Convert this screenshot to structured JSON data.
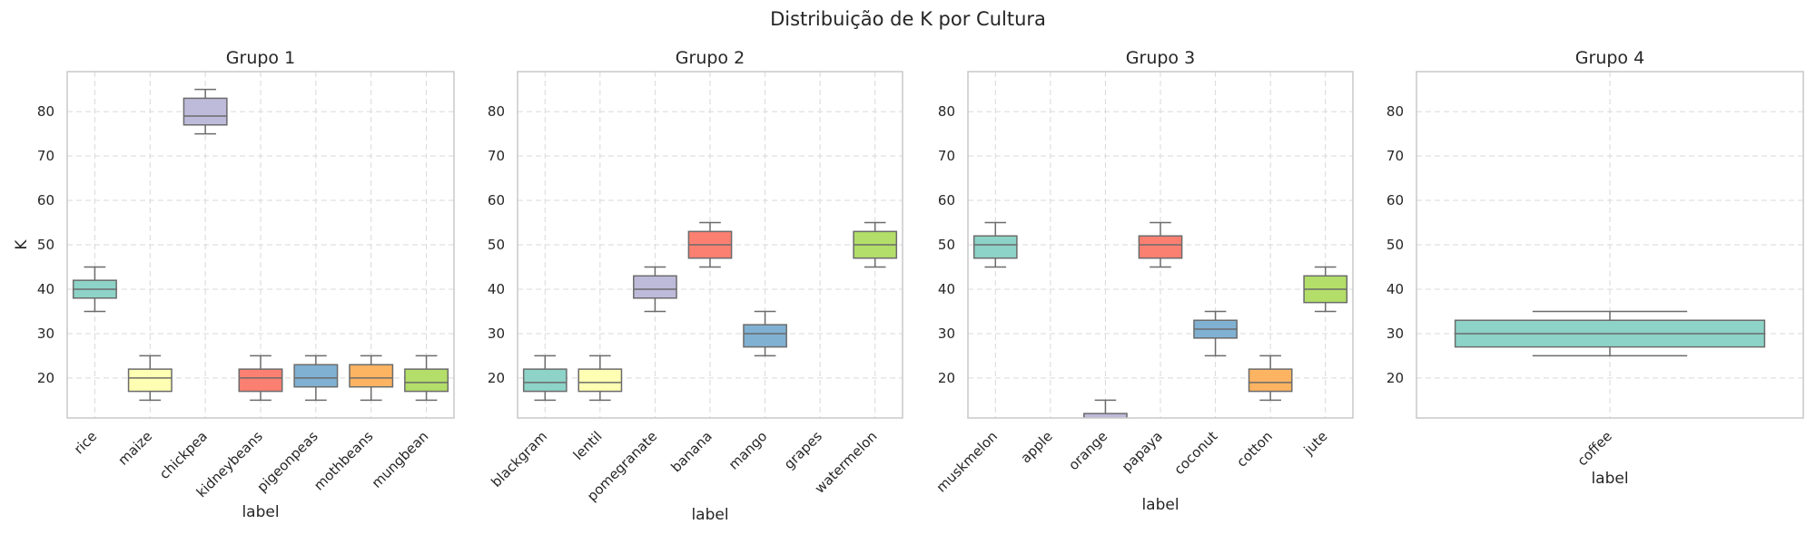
{
  "title": "Distribuição de K por Cultura",
  "chart_data": [
    {
      "type": "box",
      "title": "Grupo 1",
      "xlabel": "label",
      "ylabel": "K",
      "ylim": [
        11,
        89
      ],
      "yticks": [
        20,
        30,
        40,
        50,
        60,
        70,
        80
      ],
      "grid": true,
      "categories": [
        "rice",
        "maize",
        "chickpea",
        "kidneybeans",
        "pigeonpeas",
        "mothbeans",
        "mungbean"
      ],
      "boxes": [
        {
          "whislo": 35,
          "q1": 38,
          "med": 40,
          "q3": 42,
          "whishi": 45,
          "color": "#8dd3c7"
        },
        {
          "whislo": 15,
          "q1": 17,
          "med": 20,
          "q3": 22,
          "whishi": 25,
          "color": "#ffffb3"
        },
        {
          "whislo": 75,
          "q1": 77,
          "med": 79,
          "q3": 83,
          "whishi": 85,
          "color": "#bebada"
        },
        {
          "whislo": 15,
          "q1": 17,
          "med": 20,
          "q3": 22,
          "whishi": 25,
          "color": "#fb8072"
        },
        {
          "whislo": 15,
          "q1": 18,
          "med": 20,
          "q3": 23,
          "whishi": 25,
          "color": "#80b1d3"
        },
        {
          "whislo": 15,
          "q1": 18,
          "med": 20,
          "q3": 23,
          "whishi": 25,
          "color": "#fdb462"
        },
        {
          "whislo": 15,
          "q1": 17,
          "med": 19,
          "q3": 22,
          "whishi": 25,
          "color": "#b3de69"
        }
      ]
    },
    {
      "type": "box",
      "title": "Grupo 2",
      "xlabel": "label",
      "ylabel": "",
      "ylim": [
        11,
        89
      ],
      "yticks": [
        20,
        30,
        40,
        50,
        60,
        70,
        80
      ],
      "grid": true,
      "categories": [
        "blackgram",
        "lentil",
        "pomegranate",
        "banana",
        "mango",
        "grapes",
        "watermelon"
      ],
      "boxes": [
        {
          "whislo": 15,
          "q1": 17,
          "med": 19,
          "q3": 22,
          "whishi": 25,
          "color": "#8dd3c7"
        },
        {
          "whislo": 15,
          "q1": 17,
          "med": 19,
          "q3": 22,
          "whishi": 25,
          "color": "#ffffb3"
        },
        {
          "whislo": 35,
          "q1": 38,
          "med": 40,
          "q3": 43,
          "whishi": 45,
          "color": "#bebada"
        },
        {
          "whislo": 45,
          "q1": 47,
          "med": 50,
          "q3": 53,
          "whishi": 55,
          "color": "#fb8072"
        },
        {
          "whislo": 25,
          "q1": 27,
          "med": 30,
          "q3": 32,
          "whishi": 35,
          "color": "#80b1d3"
        },
        null,
        {
          "whislo": 45,
          "q1": 47,
          "med": 50,
          "q3": 53,
          "whishi": 55,
          "color": "#b3de69"
        }
      ]
    },
    {
      "type": "box",
      "title": "Grupo 3",
      "xlabel": "label",
      "ylabel": "",
      "ylim": [
        11,
        89
      ],
      "yticks": [
        20,
        30,
        40,
        50,
        60,
        70,
        80
      ],
      "grid": true,
      "categories": [
        "muskmelon",
        "apple",
        "orange",
        "papaya",
        "coconut",
        "cotton",
        "jute"
      ],
      "boxes": [
        {
          "whislo": 45,
          "q1": 47,
          "med": 50,
          "q3": 52,
          "whishi": 55,
          "color": "#8dd3c7"
        },
        null,
        {
          "whislo": 5,
          "q1": 7,
          "med": 10,
          "q3": 12,
          "whishi": 15,
          "color": "#bebada"
        },
        {
          "whislo": 45,
          "q1": 47,
          "med": 50,
          "q3": 52,
          "whishi": 55,
          "color": "#fb8072"
        },
        {
          "whislo": 25,
          "q1": 29,
          "med": 31,
          "q3": 33,
          "whishi": 35,
          "color": "#80b1d3"
        },
        {
          "whislo": 15,
          "q1": 17,
          "med": 19,
          "q3": 22,
          "whishi": 25,
          "color": "#fdb462"
        },
        {
          "whislo": 35,
          "q1": 37,
          "med": 40,
          "q3": 43,
          "whishi": 45,
          "color": "#b3de69"
        }
      ]
    },
    {
      "type": "box",
      "title": "Grupo 4",
      "xlabel": "label",
      "ylabel": "",
      "ylim": [
        11,
        89
      ],
      "yticks": [
        20,
        30,
        40,
        50,
        60,
        70,
        80
      ],
      "grid": true,
      "categories": [
        "coffee"
      ],
      "boxes": [
        {
          "whislo": 25,
          "q1": 27,
          "med": 30,
          "q3": 33,
          "whishi": 35,
          "color": "#8dd3c7"
        }
      ]
    }
  ]
}
